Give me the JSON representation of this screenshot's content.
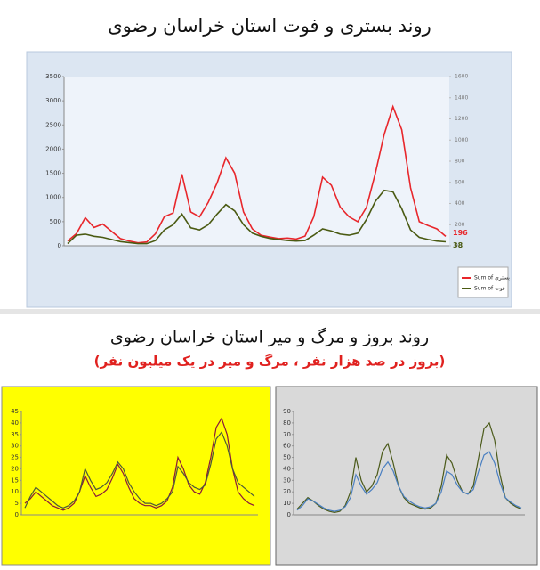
{
  "chart_data": [
    {
      "type": "line",
      "title": "روند بستری و فوت استان خراسان رضوی",
      "ylim": [
        0,
        3500
      ],
      "yticks": [
        0,
        500,
        1000,
        1500,
        2000,
        2500,
        3000,
        3500
      ],
      "y2lim": [
        0,
        1600
      ],
      "y2ticks": [
        0,
        200,
        400,
        600,
        800,
        1000,
        1200,
        1400,
        1600
      ],
      "legend": "right",
      "series": [
        {
          "name": "Sum of بستری",
          "color": "#e8262b",
          "values": [
            100,
            250,
            580,
            380,
            450,
            300,
            150,
            100,
            60,
            80,
            250,
            600,
            680,
            1480,
            700,
            600,
            900,
            1300,
            1820,
            1500,
            700,
            350,
            220,
            180,
            150,
            160,
            140,
            200,
            600,
            1420,
            1250,
            800,
            600,
            500,
            800,
            1500,
            2300,
            2880,
            2400,
            1200,
            500,
            420,
            350,
            196
          ]
        },
        {
          "name": "Sum of فوت",
          "color": "#4a5a12",
          "axis": "y2",
          "values": [
            20,
            100,
            110,
            90,
            80,
            60,
            40,
            30,
            20,
            20,
            50,
            150,
            200,
            300,
            170,
            150,
            200,
            300,
            390,
            330,
            200,
            120,
            90,
            70,
            60,
            50,
            45,
            50,
            100,
            160,
            140,
            110,
            100,
            120,
            250,
            420,
            525,
            510,
            350,
            150,
            80,
            60,
            45,
            38
          ]
        }
      ]
    },
    {
      "type": "line",
      "background": "#ffff00",
      "ylim": [
        0,
        45
      ],
      "yticks": [
        0,
        5,
        10,
        15,
        20,
        25,
        30,
        35,
        40,
        45
      ],
      "series": [
        {
          "color": "#8b1a3a",
          "values": [
            5,
            7,
            10,
            8,
            6,
            4,
            3,
            2,
            3,
            5,
            10,
            17,
            12,
            8,
            9,
            11,
            16,
            22,
            18,
            12,
            7,
            5,
            4,
            4,
            3,
            4,
            6,
            12,
            25,
            20,
            13,
            10,
            9,
            14,
            25,
            38,
            42,
            35,
            20,
            10,
            7,
            5,
            4
          ]
        },
        {
          "color": "#4b5a3a",
          "values": [
            3,
            8,
            12,
            10,
            8,
            6,
            4,
            3,
            4,
            6,
            10,
            20,
            15,
            11,
            12,
            14,
            18,
            23,
            20,
            14,
            10,
            7,
            5,
            5,
            4,
            5,
            7,
            10,
            21,
            18,
            14,
            12,
            11,
            13,
            22,
            33,
            36,
            30,
            20,
            14,
            12,
            10,
            8
          ]
        }
      ]
    },
    {
      "type": "line",
      "background": "#d9d9d9",
      "ylim": [
        0,
        90
      ],
      "yticks": [
        0,
        10,
        20,
        30,
        40,
        50,
        60,
        70,
        80,
        90
      ],
      "series": [
        {
          "color": "#4b5a1a",
          "values": [
            5,
            10,
            15,
            12,
            8,
            5,
            3,
            2,
            3,
            8,
            20,
            50,
            30,
            20,
            25,
            35,
            55,
            62,
            45,
            25,
            15,
            10,
            8,
            6,
            5,
            6,
            10,
            25,
            52,
            45,
            30,
            20,
            18,
            25,
            50,
            75,
            80,
            65,
            35,
            15,
            10,
            7,
            5
          ]
        },
        {
          "color": "#4a7fc1",
          "values": [
            4,
            8,
            14,
            12,
            9,
            6,
            4,
            3,
            4,
            7,
            15,
            35,
            25,
            18,
            22,
            28,
            40,
            46,
            38,
            25,
            16,
            12,
            9,
            7,
            6,
            7,
            10,
            20,
            38,
            35,
            26,
            20,
            18,
            22,
            38,
            52,
            55,
            45,
            28,
            15,
            11,
            8,
            6
          ]
        }
      ]
    }
  ],
  "section": {
    "title": "روند بروز و مرگ و میر استان خراسان رضوی",
    "subtitle": "(بروز در صد هزار نفر ، مرگ و میر در یک میلیون نفر)"
  }
}
